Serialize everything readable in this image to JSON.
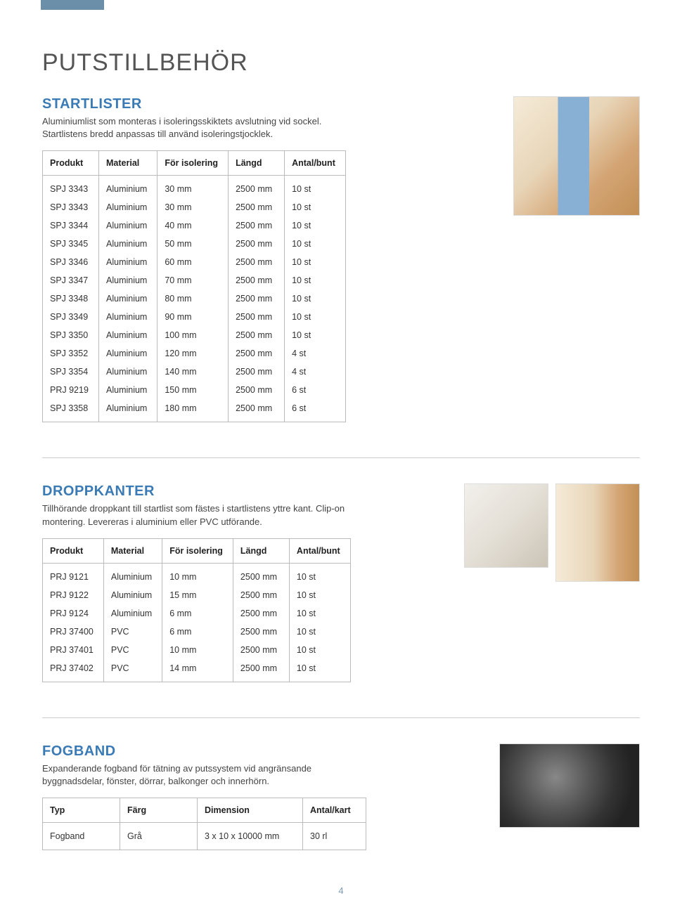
{
  "accent_color": "#6b8fa8",
  "heading_color": "#3a7ab5",
  "page_title": "PUTSTILLBEHÖR",
  "page_number": "4",
  "sections": {
    "startlister": {
      "title": "STARTLISTER",
      "desc": "Aluminiumlist som monteras i isoleringsskiktets avslutning vid sockel. Startlistens bredd anpassas till använd isoleringstjocklek.",
      "columns": [
        "Produkt",
        "Material",
        "För isolering",
        "Längd",
        "Antal/bunt"
      ],
      "rows": [
        [
          "SPJ 3343",
          "Aluminium",
          "30 mm",
          "2500 mm",
          "10 st"
        ],
        [
          "SPJ 3343",
          "Aluminium",
          "30 mm",
          "2500 mm",
          "10 st"
        ],
        [
          "SPJ 3344",
          "Aluminium",
          "40 mm",
          "2500 mm",
          "10 st"
        ],
        [
          "SPJ 3345",
          "Aluminium",
          "50 mm",
          "2500 mm",
          "10 st"
        ],
        [
          "SPJ 3346",
          "Aluminium",
          "60 mm",
          "2500 mm",
          "10 st"
        ],
        [
          "SPJ 3347",
          "Aluminium",
          "70 mm",
          "2500 mm",
          "10 st"
        ],
        [
          "SPJ 3348",
          "Aluminium",
          "80 mm",
          "2500 mm",
          "10 st"
        ],
        [
          "SPJ 3349",
          "Aluminium",
          "90 mm",
          "2500 mm",
          "10 st"
        ],
        [
          "SPJ 3350",
          "Aluminium",
          "100 mm",
          "2500 mm",
          "10 st"
        ],
        [
          "SPJ 3352",
          "Aluminium",
          "120 mm",
          "2500 mm",
          "4 st"
        ],
        [
          "SPJ 3354",
          "Aluminium",
          "140 mm",
          "2500 mm",
          "4 st"
        ],
        [
          "PRJ 9219",
          "Aluminium",
          "150 mm",
          "2500 mm",
          "6 st"
        ],
        [
          "SPJ 3358",
          "Aluminium",
          "180 mm",
          "2500 mm",
          "6 st"
        ]
      ]
    },
    "droppkanter": {
      "title": "DROPPKANTER",
      "desc": "Tillhörande droppkant till startlist som fästes i startlistens yttre kant. Clip-on montering. Levereras i aluminium eller PVC utförande.",
      "columns": [
        "Produkt",
        "Material",
        "För isolering",
        "Längd",
        "Antal/bunt"
      ],
      "rows": [
        [
          "PRJ 9121",
          "Aluminium",
          "10 mm",
          "2500 mm",
          "10 st"
        ],
        [
          "PRJ 9122",
          "Aluminium",
          "15 mm",
          "2500 mm",
          "10 st"
        ],
        [
          "PRJ 9124",
          "Aluminium",
          "6 mm",
          "2500 mm",
          "10 st"
        ],
        [
          "PRJ 37400",
          "PVC",
          "6 mm",
          "2500 mm",
          "10 st"
        ],
        [
          "PRJ 37401",
          "PVC",
          "10 mm",
          "2500 mm",
          "10 st"
        ],
        [
          "PRJ 37402",
          "PVC",
          "14 mm",
          "2500 mm",
          "10 st"
        ]
      ]
    },
    "fogband": {
      "title": "FOGBAND",
      "desc": "Expanderande fogband för tätning av putssystem vid angränsande byggnadsdelar, fönster, dörrar, balkonger och innerhörn.",
      "columns": [
        "Typ",
        "Färg",
        "Dimension",
        "Antal/kart"
      ],
      "rows": [
        [
          "Fogband",
          "Grå",
          "3 x 10 x 10000 mm",
          "30 rl"
        ]
      ]
    }
  }
}
